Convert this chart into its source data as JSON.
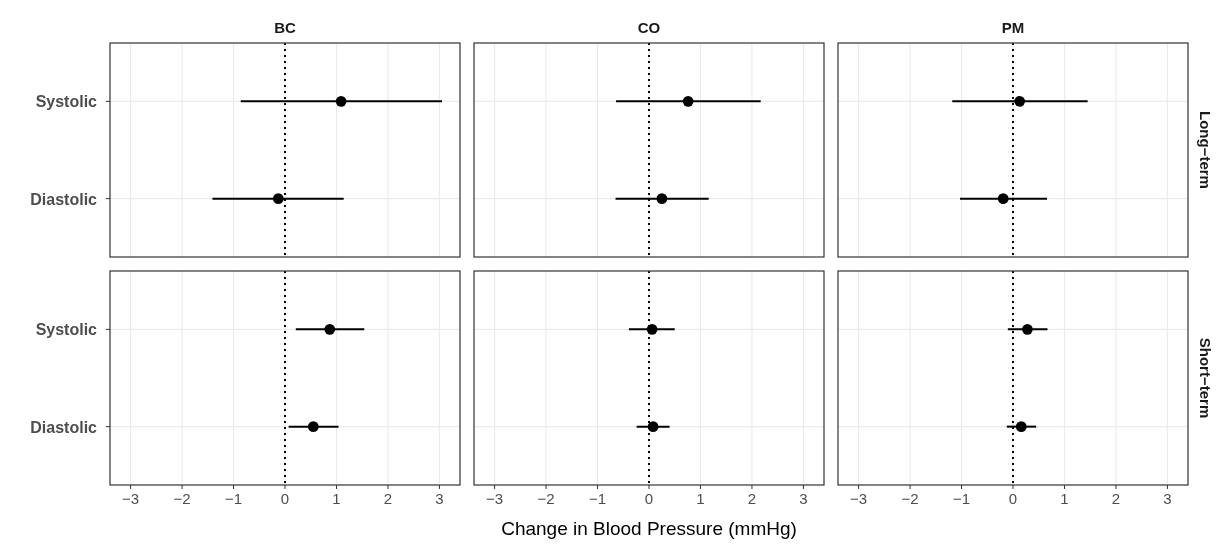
{
  "chart_data": [
    {
      "type": "scatter",
      "orientation": "horizontal",
      "title": "BC",
      "categories": [
        "Systolic",
        "Diastolic"
      ],
      "xlim": [
        -3.4,
        3.4
      ],
      "xticks": [
        -3,
        -2,
        -1,
        0,
        1,
        2,
        3
      ],
      "grid": true,
      "marker": "circle",
      "tick_labels": "y",
      "ref_lines": [
        {
          "axis": "x",
          "value": 0,
          "line_style": "dotted",
          "color": "#000000"
        }
      ],
      "series": [
        {
          "color": "#000000",
          "values": [
            1.09,
            -0.13
          ],
          "errors": [
            [
              -0.86,
              3.05
            ],
            [
              -1.41,
              1.14
            ]
          ]
        }
      ]
    },
    {
      "type": "scatter",
      "orientation": "horizontal",
      "title": "CO",
      "categories": [
        null,
        null
      ],
      "xlim": [
        -3.4,
        3.4
      ],
      "xticks": [
        -3,
        -2,
        -1,
        0,
        1,
        2,
        3
      ],
      "grid": true,
      "marker": "circle",
      "tick_labels": false,
      "ref_lines": [
        {
          "axis": "x",
          "value": 0,
          "line_style": "dotted",
          "color": "#000000"
        }
      ],
      "series": [
        {
          "color": "#000000",
          "values": [
            0.76,
            0.25
          ],
          "errors": [
            [
              -0.64,
              2.17
            ],
            [
              -0.65,
              1.16
            ]
          ]
        }
      ]
    },
    {
      "type": "scatter",
      "orientation": "horizontal",
      "title": "PM",
      "annotations": [
        "Long−term"
      ],
      "categories": [
        null,
        null
      ],
      "xlim": [
        -3.4,
        3.4
      ],
      "xticks": [
        -3,
        -2,
        -1,
        0,
        1,
        2,
        3
      ],
      "grid": true,
      "marker": "circle",
      "tick_labels": false,
      "ref_lines": [
        {
          "axis": "x",
          "value": 0,
          "line_style": "dotted",
          "color": "#000000"
        }
      ],
      "series": [
        {
          "color": "#000000",
          "values": [
            0.13,
            -0.19
          ],
          "errors": [
            [
              -1.18,
              1.45
            ],
            [
              -1.03,
              0.66
            ]
          ]
        }
      ]
    },
    {
      "type": "scatter",
      "orientation": "horizontal",
      "categories": [
        "Systolic",
        "Diastolic"
      ],
      "xlim": [
        -3.4,
        3.4
      ],
      "xticks": [
        {
          "value": -3,
          "label": "−3"
        },
        {
          "value": -2,
          "label": "−2"
        },
        {
          "value": -1,
          "label": "−1"
        },
        0,
        1,
        2,
        3
      ],
      "grid": true,
      "marker": "circle",
      "ref_lines": [
        {
          "axis": "x",
          "value": 0,
          "line_style": "dotted",
          "color": "#000000"
        }
      ],
      "series": [
        {
          "color": "#000000",
          "values": [
            0.87,
            0.55
          ],
          "errors": [
            [
              0.21,
              1.54
            ],
            [
              0.07,
              1.04
            ]
          ]
        }
      ]
    },
    {
      "type": "scatter",
      "orientation": "horizontal",
      "xlabel": "Change in Blood Pressure (mmHg)",
      "categories": [
        null,
        null
      ],
      "xlim": [
        -3.4,
        3.4
      ],
      "xticks": [
        {
          "value": -3,
          "label": "−3"
        },
        {
          "value": -2,
          "label": "−2"
        },
        {
          "value": -1,
          "label": "−1"
        },
        0,
        1,
        2,
        3
      ],
      "grid": true,
      "marker": "circle",
      "tick_labels": "x",
      "ref_lines": [
        {
          "axis": "x",
          "value": 0,
          "line_style": "dotted",
          "color": "#000000"
        }
      ],
      "series": [
        {
          "color": "#000000",
          "values": [
            0.06,
            0.08
          ],
          "errors": [
            [
              -0.39,
              0.5
            ],
            [
              -0.24,
              0.4
            ]
          ]
        }
      ]
    },
    {
      "type": "scatter",
      "orientation": "horizontal",
      "annotations": [
        "Short−term"
      ],
      "categories": [
        null,
        null
      ],
      "xlim": [
        -3.4,
        3.4
      ],
      "xticks": [
        {
          "value": -3,
          "label": "−3"
        },
        {
          "value": -2,
          "label": "−2"
        },
        {
          "value": -1,
          "label": "−1"
        },
        0,
        1,
        2,
        3
      ],
      "grid": true,
      "marker": "circle",
      "tick_labels": "x",
      "ref_lines": [
        {
          "axis": "x",
          "value": 0,
          "line_style": "dotted",
          "color": "#000000"
        }
      ],
      "series": [
        {
          "color": "#000000",
          "values": [
            0.28,
            0.16
          ],
          "errors": [
            [
              -0.1,
              0.67
            ],
            [
              -0.12,
              0.45
            ]
          ]
        }
      ]
    }
  ]
}
